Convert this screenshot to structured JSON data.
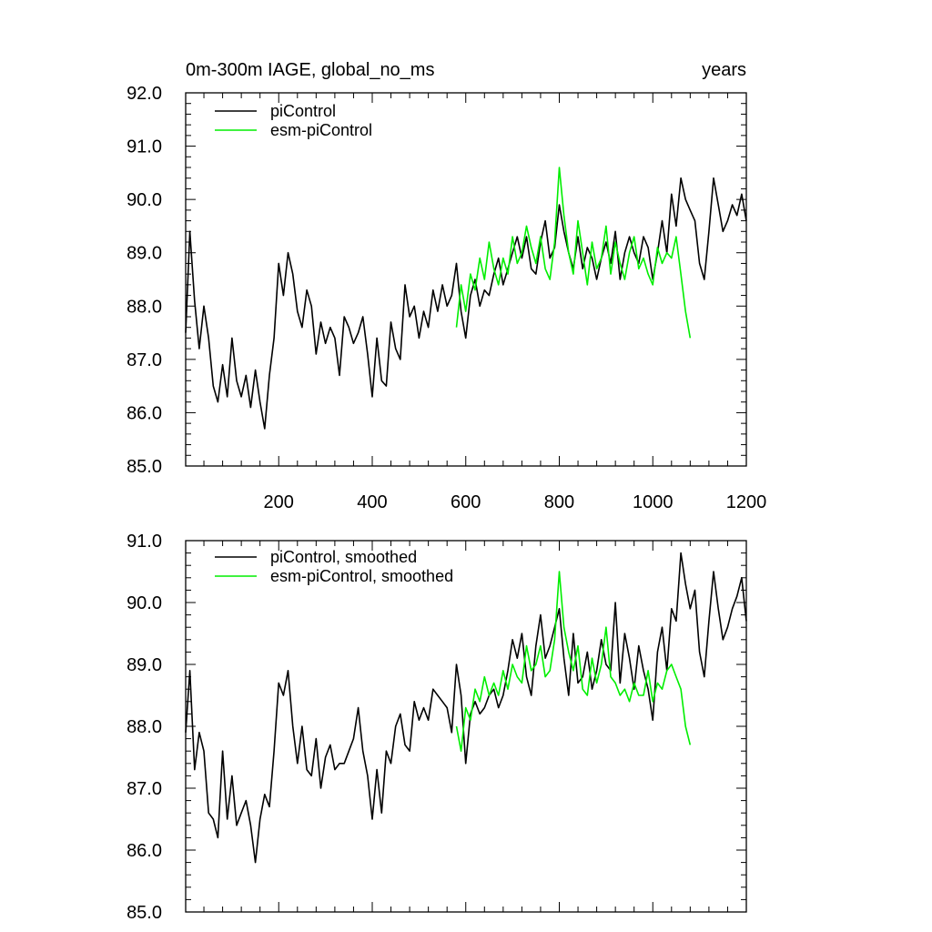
{
  "chart_data": [
    {
      "type": "line",
      "title": "0m-300m IAGE, global_no_ms",
      "title_right": "years",
      "xlabel": "",
      "ylabel": "",
      "xlim": [
        1,
        1200
      ],
      "ylim": [
        85.0,
        92.0
      ],
      "x_ticks": [
        200,
        400,
        600,
        800,
        1000,
        1200
      ],
      "x_tick_labels": [
        "200",
        "400",
        "600",
        "800",
        "1000",
        "1200"
      ],
      "y_ticks": [
        85.0,
        86.0,
        87.0,
        88.0,
        89.0,
        90.0,
        91.0,
        92.0
      ],
      "y_tick_labels": [
        "85.0",
        "86.0",
        "87.0",
        "88.0",
        "89.0",
        "90.0",
        "91.0",
        "92.0"
      ],
      "grid": false,
      "legend_position": "top-left",
      "series": [
        {
          "name": "piControl",
          "color": "#000000",
          "x": [
            1,
            10,
            20,
            30,
            40,
            50,
            60,
            70,
            80,
            90,
            100,
            110,
            120,
            130,
            140,
            150,
            160,
            170,
            180,
            190,
            200,
            210,
            220,
            230,
            240,
            250,
            260,
            270,
            280,
            290,
            300,
            310,
            320,
            330,
            340,
            350,
            360,
            370,
            380,
            390,
            400,
            410,
            420,
            430,
            440,
            450,
            460,
            470,
            480,
            490,
            500,
            510,
            520,
            530,
            540,
            550,
            560,
            570,
            580,
            590,
            600,
            610,
            620,
            630,
            640,
            650,
            660,
            670,
            680,
            690,
            700,
            710,
            720,
            730,
            740,
            750,
            760,
            770,
            780,
            790,
            800,
            810,
            820,
            830,
            840,
            850,
            860,
            870,
            880,
            890,
            900,
            910,
            920,
            930,
            940,
            950,
            960,
            970,
            980,
            990,
            1000,
            1010,
            1020,
            1030,
            1040,
            1050,
            1060,
            1070,
            1080,
            1090,
            1100,
            1110,
            1120,
            1130,
            1140,
            1150,
            1160,
            1170,
            1180,
            1190,
            1200
          ],
          "values": [
            87.5,
            89.4,
            88.1,
            87.2,
            88.0,
            87.4,
            86.5,
            86.2,
            86.9,
            86.3,
            87.4,
            86.6,
            86.3,
            86.7,
            86.1,
            86.8,
            86.2,
            85.7,
            86.7,
            87.4,
            88.8,
            88.2,
            89.0,
            88.6,
            87.9,
            87.6,
            88.3,
            88.0,
            87.1,
            87.7,
            87.3,
            87.6,
            87.4,
            86.7,
            87.8,
            87.6,
            87.3,
            87.5,
            87.8,
            87.1,
            86.3,
            87.4,
            86.6,
            86.5,
            87.7,
            87.2,
            87.0,
            88.4,
            87.8,
            88.0,
            87.4,
            87.9,
            87.6,
            88.3,
            87.9,
            88.4,
            88.0,
            88.2,
            88.8,
            87.9,
            87.4,
            88.2,
            88.5,
            88.0,
            88.3,
            88.2,
            88.6,
            88.9,
            88.4,
            88.7,
            89.0,
            89.3,
            88.9,
            89.3,
            88.7,
            88.6,
            89.2,
            89.6,
            88.9,
            89.1,
            89.9,
            89.4,
            89.0,
            88.7,
            89.3,
            88.7,
            89.1,
            88.9,
            88.5,
            88.9,
            89.2,
            88.8,
            89.4,
            88.5,
            89.0,
            89.3,
            89.0,
            88.8,
            89.3,
            89.1,
            88.5,
            89.0,
            89.6,
            89.0,
            90.1,
            89.5,
            90.4,
            90.0,
            89.8,
            89.6,
            88.8,
            88.5,
            89.4,
            90.4,
            89.9,
            89.4,
            89.6,
            89.9,
            89.7,
            90.1,
            89.6
          ]
        },
        {
          "name": "esm-piControl",
          "color": "#00ee00",
          "x": [
            580,
            590,
            600,
            610,
            620,
            630,
            640,
            650,
            660,
            670,
            680,
            690,
            700,
            710,
            720,
            730,
            740,
            750,
            760,
            770,
            780,
            790,
            800,
            810,
            820,
            830,
            840,
            850,
            860,
            870,
            880,
            890,
            900,
            910,
            920,
            930,
            940,
            950,
            960,
            970,
            980,
            990,
            1000,
            1010,
            1020,
            1030,
            1040,
            1050,
            1060,
            1070,
            1080
          ],
          "values": [
            87.6,
            88.4,
            87.9,
            88.6,
            88.3,
            88.9,
            88.5,
            89.2,
            88.7,
            88.4,
            88.9,
            88.6,
            89.3,
            88.8,
            89.0,
            89.5,
            89.1,
            88.8,
            89.3,
            88.7,
            88.5,
            89.2,
            90.6,
            89.7,
            89.0,
            88.6,
            89.6,
            89.0,
            88.4,
            89.2,
            88.7,
            88.9,
            89.5,
            88.6,
            89.2,
            88.8,
            88.5,
            89.0,
            89.3,
            88.7,
            88.9,
            88.6,
            88.4,
            89.1,
            88.8,
            89.0,
            88.9,
            89.3,
            88.6,
            87.9,
            87.4
          ]
        }
      ]
    },
    {
      "type": "line",
      "title": "",
      "xlabel": "",
      "ylabel": "",
      "xlim": [
        1,
        1200
      ],
      "ylim": [
        85.0,
        91.0
      ],
      "x_ticks": [
        200,
        400,
        600,
        800,
        1000,
        1200
      ],
      "x_tick_labels": [],
      "y_ticks": [
        85.0,
        86.0,
        87.0,
        88.0,
        89.0,
        90.0,
        91.0
      ],
      "y_tick_labels": [
        "85.0",
        "86.0",
        "87.0",
        "88.0",
        "89.0",
        "90.0",
        "91.0"
      ],
      "grid": false,
      "legend_position": "top-left",
      "series": [
        {
          "name": "piControl, smoothed",
          "color": "#000000",
          "x": [
            1,
            10,
            20,
            30,
            40,
            50,
            60,
            70,
            80,
            90,
            100,
            110,
            120,
            130,
            140,
            150,
            160,
            170,
            180,
            190,
            200,
            210,
            220,
            230,
            240,
            250,
            260,
            270,
            280,
            290,
            300,
            310,
            320,
            330,
            340,
            350,
            360,
            370,
            380,
            390,
            400,
            410,
            420,
            430,
            440,
            450,
            460,
            470,
            480,
            490,
            500,
            510,
            520,
            530,
            540,
            550,
            560,
            570,
            580,
            590,
            600,
            610,
            620,
            630,
            640,
            650,
            660,
            670,
            680,
            690,
            700,
            710,
            720,
            730,
            740,
            750,
            760,
            770,
            780,
            790,
            800,
            810,
            820,
            830,
            840,
            850,
            860,
            870,
            880,
            890,
            900,
            910,
            920,
            930,
            940,
            950,
            960,
            970,
            980,
            990,
            1000,
            1010,
            1020,
            1030,
            1040,
            1050,
            1060,
            1070,
            1080,
            1090,
            1100,
            1110,
            1120,
            1130,
            1140,
            1150,
            1160,
            1170,
            1180,
            1190,
            1200
          ],
          "values": [
            87.9,
            88.9,
            87.3,
            87.9,
            87.6,
            86.6,
            86.5,
            86.2,
            87.6,
            86.5,
            87.2,
            86.4,
            86.6,
            86.8,
            86.4,
            85.8,
            86.5,
            86.9,
            86.7,
            87.6,
            88.7,
            88.5,
            88.9,
            88.0,
            87.4,
            88.0,
            87.3,
            87.2,
            87.8,
            87.0,
            87.5,
            87.7,
            87.3,
            87.4,
            87.4,
            87.6,
            87.8,
            88.3,
            87.6,
            87.2,
            86.5,
            87.3,
            86.6,
            87.6,
            87.4,
            88.0,
            88.2,
            87.7,
            87.6,
            88.4,
            88.1,
            88.3,
            88.1,
            88.6,
            88.5,
            88.4,
            88.3,
            87.9,
            89.0,
            88.5,
            87.4,
            88.2,
            88.4,
            88.2,
            88.3,
            88.5,
            88.6,
            88.3,
            88.5,
            88.9,
            89.4,
            89.1,
            89.5,
            88.8,
            88.5,
            89.3,
            89.8,
            89.1,
            89.3,
            89.6,
            89.9,
            89.1,
            88.5,
            89.5,
            88.7,
            88.8,
            89.2,
            88.6,
            88.9,
            89.4,
            89.0,
            88.9,
            90.0,
            88.7,
            89.5,
            89.1,
            88.6,
            89.3,
            88.9,
            88.6,
            88.1,
            89.2,
            89.6,
            88.9,
            89.9,
            89.7,
            90.8,
            90.3,
            89.9,
            90.2,
            89.2,
            88.8,
            89.7,
            90.5,
            89.9,
            89.4,
            89.6,
            89.9,
            90.1,
            90.4,
            89.7
          ]
        },
        {
          "name": "esm-piControl, smoothed",
          "color": "#00ee00",
          "x": [
            580,
            590,
            600,
            610,
            620,
            630,
            640,
            650,
            660,
            670,
            680,
            690,
            700,
            710,
            720,
            730,
            740,
            750,
            760,
            770,
            780,
            790,
            800,
            810,
            820,
            830,
            840,
            850,
            860,
            870,
            880,
            890,
            900,
            910,
            920,
            930,
            940,
            950,
            960,
            970,
            980,
            990,
            1000,
            1010,
            1020,
            1030,
            1040,
            1050,
            1060,
            1070,
            1080
          ],
          "values": [
            88.0,
            87.6,
            88.3,
            88.1,
            88.6,
            88.4,
            88.8,
            88.5,
            88.7,
            88.5,
            88.9,
            88.6,
            89.0,
            88.8,
            88.7,
            89.3,
            88.9,
            89.0,
            89.3,
            88.8,
            88.9,
            89.4,
            90.5,
            89.6,
            89.2,
            88.9,
            89.3,
            88.6,
            88.5,
            89.1,
            88.7,
            89.0,
            89.6,
            88.8,
            88.7,
            88.5,
            88.6,
            88.4,
            88.7,
            88.5,
            88.5,
            88.9,
            88.4,
            88.7,
            88.6,
            88.9,
            89.0,
            88.8,
            88.6,
            88.0,
            87.7
          ]
        }
      ]
    }
  ]
}
